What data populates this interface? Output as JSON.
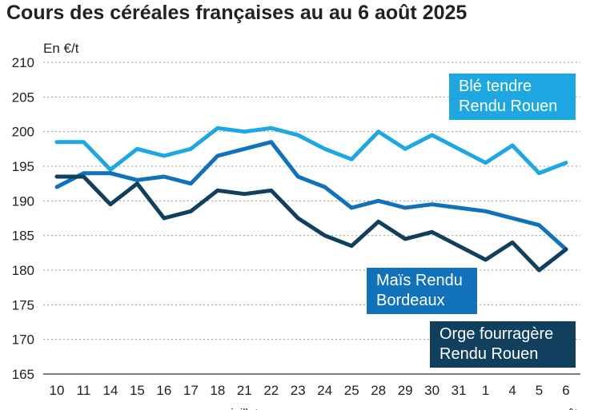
{
  "chart_data": {
    "type": "line",
    "title": "Cours des céréales françaises au au 6 août 2025",
    "ylabel": "En €/t",
    "ylim": [
      165,
      210
    ],
    "yticks": [
      165,
      170,
      175,
      180,
      185,
      190,
      195,
      200,
      205,
      210
    ],
    "categories": [
      "10",
      "11",
      "14",
      "15",
      "16",
      "17",
      "18",
      "21",
      "22",
      "23",
      "24",
      "25",
      "28",
      "29",
      "30",
      "31",
      "1",
      "4",
      "5",
      "6"
    ],
    "month_labels": [
      {
        "label": "juillet",
        "at": "21"
      },
      {
        "label": "août",
        "at": "6"
      }
    ],
    "series": [
      {
        "name": "Blé tendre Rendu Rouen",
        "color": "#1ea7e1",
        "values": [
          198.5,
          198.5,
          194.5,
          197.5,
          196.5,
          197.5,
          200.5,
          200,
          200.5,
          199.5,
          197.5,
          196,
          200,
          197.5,
          199.5,
          197.5,
          195.5,
          198,
          194,
          195.5
        ]
      },
      {
        "name": "Maïs Rendu Bordeaux",
        "color": "#1172b9",
        "values": [
          192,
          194,
          194,
          193,
          193.5,
          192.5,
          196.5,
          197.5,
          198.5,
          193.5,
          192,
          189,
          190,
          189,
          189.5,
          189,
          188.5,
          187.5,
          186.5,
          183
        ]
      },
      {
        "name": "Orge fourragère Rendu Rouen",
        "color": "#11405e",
        "values": [
          193.5,
          193.5,
          189.5,
          192.5,
          187.5,
          188.5,
          191.5,
          191,
          191.5,
          187.5,
          185,
          183.5,
          187,
          184.5,
          185.5,
          183.5,
          181.5,
          184,
          180,
          183
        ]
      }
    ],
    "legend": [
      {
        "line1": "Blé tendre",
        "line2": "Rendu Rouen"
      },
      {
        "line1": "Maïs Rendu",
        "line2": "Bordeaux"
      },
      {
        "line1": "Orge fourragère",
        "line2": "Rendu Rouen"
      }
    ]
  }
}
